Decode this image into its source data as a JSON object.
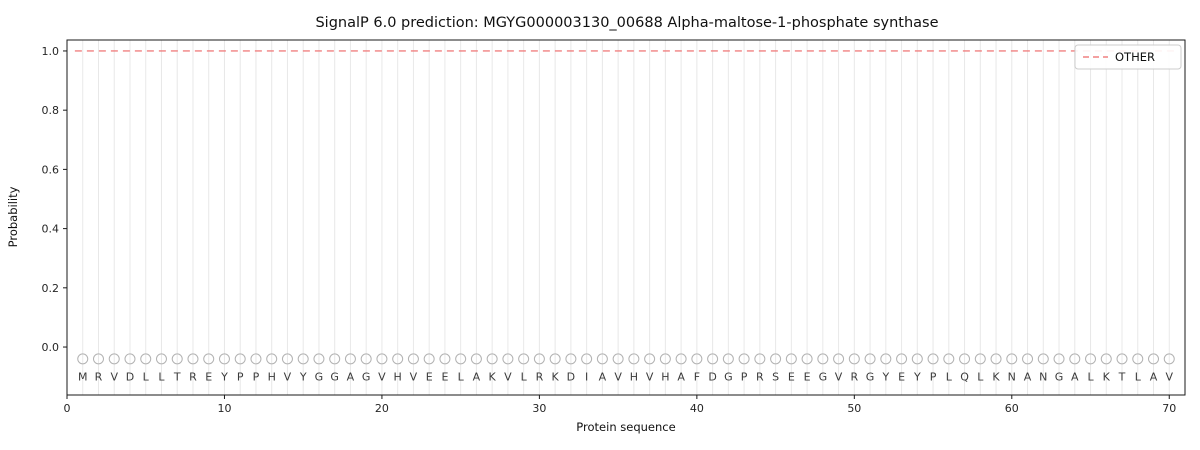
{
  "chart_data": {
    "type": "line",
    "title": "SignalP 6.0 prediction: MGYG000003130_00688 Alpha-maltose-1-phosphate synthase",
    "xlabel": "Protein sequence",
    "ylabel": "Probability",
    "xlim": [
      0,
      71
    ],
    "ylim": [
      -0.162,
      1.037
    ],
    "xticks": [
      0,
      10,
      20,
      30,
      40,
      50,
      60,
      70
    ],
    "yticks": [
      0.0,
      0.2,
      0.4,
      0.6,
      0.8,
      1.0
    ],
    "grid": "vertical-line-per-residue",
    "legend_position": "upper-right",
    "series": [
      {
        "name": "OTHER",
        "style": "dashed",
        "color": "#f08080",
        "x": [
          1,
          70
        ],
        "values": [
          1.0,
          1.0
        ],
        "note": "constant probability 1.0 across residues 1-70"
      }
    ],
    "sequence": [
      "M",
      "R",
      "V",
      "D",
      "L",
      "L",
      "T",
      "R",
      "E",
      "Y",
      "P",
      "P",
      "H",
      "V",
      "Y",
      "G",
      "G",
      "A",
      "G",
      "V",
      "H",
      "V",
      "E",
      "E",
      "L",
      "A",
      "K",
      "V",
      "L",
      "R",
      "K",
      "D",
      "I",
      "A",
      "V",
      "H",
      "V",
      "H",
      "A",
      "F",
      "D",
      "G",
      "P",
      "R",
      "S",
      "E",
      "E",
      "G",
      "V",
      "R",
      "G",
      "Y",
      "E",
      "Y",
      "P",
      "L",
      "Q",
      "L",
      "K",
      "N",
      "A",
      "N",
      "G",
      "A",
      "L",
      "K",
      "T",
      "L",
      "A",
      "V"
    ],
    "marker": {
      "shape": "open-circle",
      "y": -0.04,
      "color": "#b3b3b3"
    },
    "colors": {
      "grid": "#e8e8e8",
      "spine": "#1a1a1a",
      "tick_label": "#262626",
      "sequence_letter": "#3a3a3a",
      "legend_border": "#cccccc",
      "background": "#ffffff"
    }
  }
}
